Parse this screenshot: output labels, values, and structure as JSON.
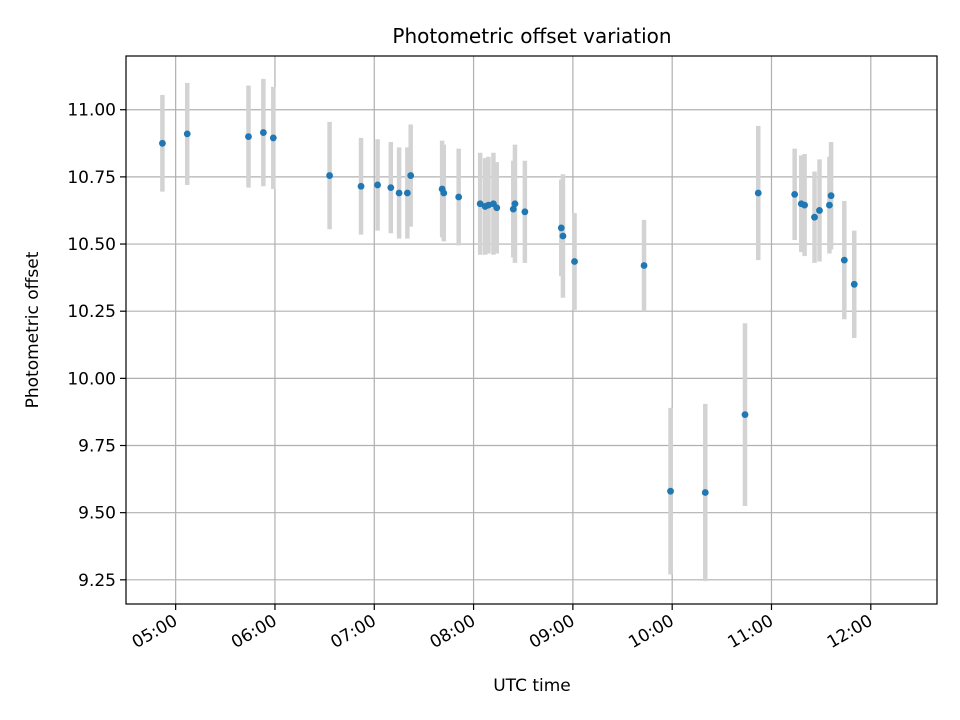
{
  "chart_data": {
    "type": "scatter",
    "title": "Photometric offset variation",
    "xlabel": "UTC time",
    "ylabel": "Photometric offset",
    "x_unit": "UTC time (HH:MM)",
    "xlim": [
      "04:30",
      "12:40"
    ],
    "ylim": [
      9.16,
      11.2
    ],
    "x_ticks": [
      "05:00",
      "06:00",
      "07:00",
      "08:00",
      "09:00",
      "10:00",
      "11:00",
      "12:00"
    ],
    "y_ticks": [
      11.0,
      10.75,
      10.5,
      10.25,
      10.0,
      9.75,
      9.5,
      9.25
    ],
    "y_tick_labels": [
      "11.00",
      "10.75",
      "10.50",
      "10.25",
      "10.00",
      "9.75",
      "9.50",
      "9.25"
    ],
    "grid": true,
    "point_color": "#1f77b4",
    "errorbar_color": "#d3d3d3",
    "points": [
      {
        "x": "04:52",
        "y": 10.875,
        "err": 0.18
      },
      {
        "x": "05:07",
        "y": 10.91,
        "err": 0.19
      },
      {
        "x": "05:44",
        "y": 10.9,
        "err": 0.19
      },
      {
        "x": "05:53",
        "y": 10.915,
        "err": 0.2
      },
      {
        "x": "05:59",
        "y": 10.895,
        "err": 0.19
      },
      {
        "x": "06:33",
        "y": 10.755,
        "err": 0.2
      },
      {
        "x": "06:52",
        "y": 10.715,
        "err": 0.18
      },
      {
        "x": "07:02",
        "y": 10.72,
        "err": 0.17
      },
      {
        "x": "07:10",
        "y": 10.71,
        "err": 0.17
      },
      {
        "x": "07:15",
        "y": 10.69,
        "err": 0.17
      },
      {
        "x": "07:20",
        "y": 10.69,
        "err": 0.17
      },
      {
        "x": "07:22",
        "y": 10.755,
        "err": 0.19
      },
      {
        "x": "07:41",
        "y": 10.705,
        "err": 0.18
      },
      {
        "x": "07:42",
        "y": 10.69,
        "err": 0.18
      },
      {
        "x": "07:51",
        "y": 10.675,
        "err": 0.18
      },
      {
        "x": "08:04",
        "y": 10.65,
        "err": 0.19
      },
      {
        "x": "08:07",
        "y": 10.64,
        "err": 0.18
      },
      {
        "x": "08:09",
        "y": 10.645,
        "err": 0.18
      },
      {
        "x": "08:12",
        "y": 10.65,
        "err": 0.19
      },
      {
        "x": "08:14",
        "y": 10.635,
        "err": 0.17
      },
      {
        "x": "08:24",
        "y": 10.63,
        "err": 0.18
      },
      {
        "x": "08:25",
        "y": 10.65,
        "err": 0.22
      },
      {
        "x": "08:31",
        "y": 10.62,
        "err": 0.19
      },
      {
        "x": "08:53",
        "y": 10.56,
        "err": 0.18
      },
      {
        "x": "08:54",
        "y": 10.53,
        "err": 0.23
      },
      {
        "x": "09:01",
        "y": 10.435,
        "err": 0.18
      },
      {
        "x": "09:43",
        "y": 10.42,
        "err": 0.17
      },
      {
        "x": "09:59",
        "y": 9.58,
        "err": 0.31
      },
      {
        "x": "10:20",
        "y": 9.575,
        "err": 0.33
      },
      {
        "x": "10:44",
        "y": 9.865,
        "err": 0.34
      },
      {
        "x": "10:52",
        "y": 10.69,
        "err": 0.25
      },
      {
        "x": "11:14",
        "y": 10.685,
        "err": 0.17
      },
      {
        "x": "11:18",
        "y": 10.65,
        "err": 0.18
      },
      {
        "x": "11:20",
        "y": 10.645,
        "err": 0.19
      },
      {
        "x": "11:26",
        "y": 10.6,
        "err": 0.17
      },
      {
        "x": "11:29",
        "y": 10.625,
        "err": 0.19
      },
      {
        "x": "11:35",
        "y": 10.645,
        "err": 0.18
      },
      {
        "x": "11:36",
        "y": 10.68,
        "err": 0.2
      },
      {
        "x": "11:44",
        "y": 10.44,
        "err": 0.22
      },
      {
        "x": "11:50",
        "y": 10.35,
        "err": 0.2
      }
    ]
  }
}
